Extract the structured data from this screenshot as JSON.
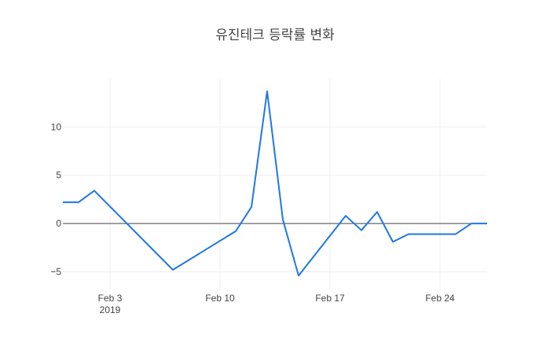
{
  "chart_data": {
    "type": "line",
    "title": "유진테크 등락률 변화",
    "xlabel": "",
    "ylabel": "",
    "x_axis": {
      "type": "date",
      "range": [
        "2019-01-31",
        "2019-02-27"
      ],
      "ticks": [
        {
          "date": "2019-02-03",
          "label": "Feb 3",
          "sublabel": "2019"
        },
        {
          "date": "2019-02-10",
          "label": "Feb 10",
          "sublabel": ""
        },
        {
          "date": "2019-02-17",
          "label": "Feb 17",
          "sublabel": ""
        },
        {
          "date": "2019-02-24",
          "label": "Feb 24",
          "sublabel": ""
        }
      ]
    },
    "y_axis": {
      "range": [
        -7,
        15
      ],
      "ticks": [
        {
          "value": -5,
          "label": "−5"
        },
        {
          "value": 0,
          "label": "0"
        },
        {
          "value": 5,
          "label": "5"
        },
        {
          "value": 10,
          "label": "10"
        }
      ],
      "zeroline": true
    },
    "grid": true,
    "series": [
      {
        "color": "#1f77e4",
        "points": [
          {
            "x": "2019-01-31",
            "y": 2.2
          },
          {
            "x": "2019-02-01",
            "y": 2.2
          },
          {
            "x": "2019-02-02",
            "y": 3.4
          },
          {
            "x": "2019-02-07",
            "y": -4.8
          },
          {
            "x": "2019-02-11",
            "y": -0.8
          },
          {
            "x": "2019-02-12",
            "y": 1.7
          },
          {
            "x": "2019-02-13",
            "y": 13.7
          },
          {
            "x": "2019-02-14",
            "y": 0.4
          },
          {
            "x": "2019-02-15",
            "y": -5.4
          },
          {
            "x": "2019-02-18",
            "y": 0.8
          },
          {
            "x": "2019-02-19",
            "y": -0.7
          },
          {
            "x": "2019-02-20",
            "y": 1.2
          },
          {
            "x": "2019-02-21",
            "y": -1.9
          },
          {
            "x": "2019-02-22",
            "y": -1.1
          },
          {
            "x": "2019-02-25",
            "y": -1.1
          },
          {
            "x": "2019-02-26",
            "y": 0.0
          },
          {
            "x": "2019-02-27",
            "y": 0.0
          }
        ]
      }
    ]
  }
}
